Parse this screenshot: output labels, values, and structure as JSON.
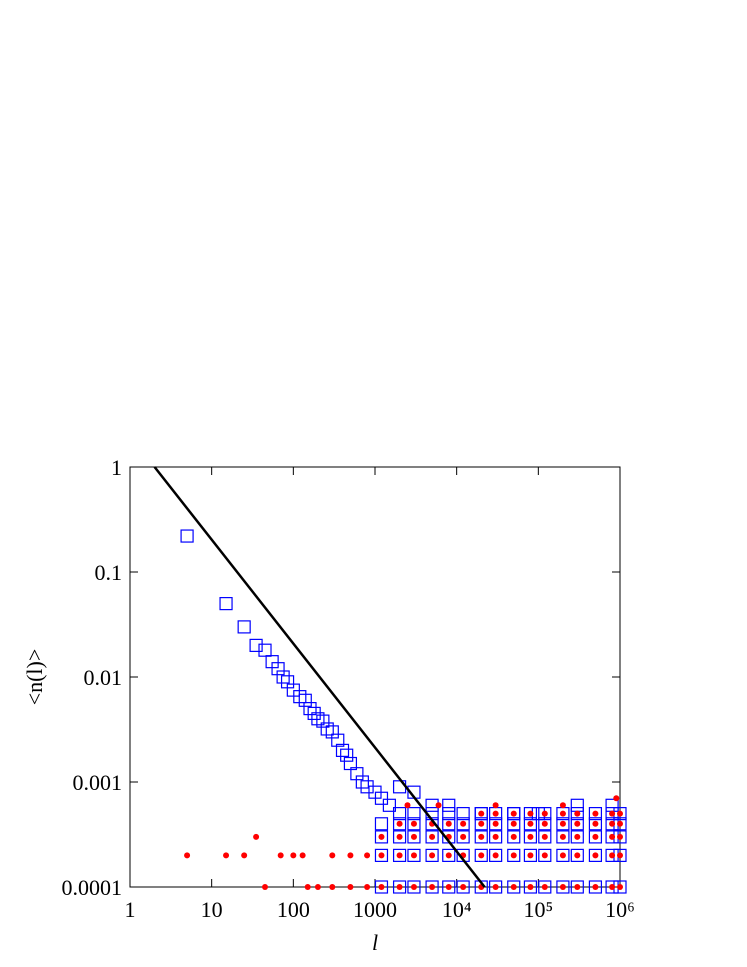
{
  "chart_data": {
    "type": "scatter",
    "xlabel": "l",
    "ylabel": "<n(l)>",
    "xscale": "log",
    "yscale": "log",
    "xlim": [
      1,
      1000000
    ],
    "ylim": [
      0.0001,
      1
    ],
    "xticks": [
      1,
      10,
      100,
      1000,
      {
        "value": 10000,
        "label": "10⁴"
      },
      {
        "value": 100000,
        "label": "10⁵"
      },
      {
        "value": 1000000,
        "label": "10⁶"
      }
    ],
    "yticks": [
      1,
      0.1,
      0.01,
      0.001,
      0.0001
    ],
    "series": [
      {
        "color": "#0000ff",
        "marker": "square",
        "x": [
          5,
          15,
          25,
          35,
          45,
          55,
          65,
          75,
          85,
          100,
          120,
          140,
          160,
          180,
          200,
          230,
          260,
          300,
          350,
          400,
          450,
          500,
          600,
          700,
          800,
          1000,
          1200,
          1500,
          2000,
          3000,
          5000,
          8000,
          20000,
          50000,
          100000,
          300000,
          800000
        ],
        "values": [
          0.22,
          0.05,
          0.03,
          0.02,
          0.018,
          0.014,
          0.012,
          0.01,
          0.009,
          0.0075,
          0.0065,
          0.006,
          0.005,
          0.0045,
          0.004,
          0.0038,
          0.0032,
          0.003,
          0.0025,
          0.002,
          0.0018,
          0.0015,
          0.0012,
          0.001,
          0.0009,
          0.0008,
          0.0007,
          0.0006,
          0.0009,
          0.0008,
          0.0006,
          0.0006,
          0.0005,
          0.0005,
          0.0005,
          0.0006,
          0.0006
        ]
      },
      {
        "color": "#0000ff",
        "marker": "square",
        "x": [
          1200,
          2000,
          3000,
          5000,
          8000,
          12000,
          20000,
          30000,
          50000,
          80000,
          120000,
          200000,
          300000,
          500000,
          800000,
          1000000
        ],
        "values": [
          0.0001,
          0.0001,
          0.0001,
          0.0001,
          0.0001,
          0.0001,
          0.0001,
          0.0001,
          0.0001,
          0.0001,
          0.0001,
          0.0001,
          0.0001,
          0.0001,
          0.0001,
          0.0001
        ]
      },
      {
        "color": "#0000ff",
        "marker": "square",
        "x": [
          1200,
          2000,
          3000,
          5000,
          8000,
          12000,
          20000,
          30000,
          50000,
          80000,
          120000,
          200000,
          300000,
          500000,
          800000,
          1000000
        ],
        "values": [
          0.0002,
          0.0002,
          0.0002,
          0.0002,
          0.0002,
          0.0002,
          0.0002,
          0.0002,
          0.0002,
          0.0002,
          0.0002,
          0.0002,
          0.0002,
          0.0002,
          0.0002,
          0.0002
        ]
      },
      {
        "color": "#0000ff",
        "marker": "square",
        "x": [
          1200,
          2000,
          3000,
          5000,
          8000,
          12000,
          20000,
          30000,
          50000,
          80000,
          120000,
          200000,
          300000,
          500000,
          800000,
          1000000
        ],
        "values": [
          0.0003,
          0.0003,
          0.0003,
          0.0003,
          0.0003,
          0.0003,
          0.0003,
          0.0003,
          0.0003,
          0.0003,
          0.0003,
          0.0003,
          0.0003,
          0.0003,
          0.0003,
          0.0003
        ]
      },
      {
        "color": "#0000ff",
        "marker": "square",
        "x": [
          1200,
          2000,
          3000,
          5000,
          8000,
          12000,
          20000,
          30000,
          50000,
          80000,
          120000,
          200000,
          300000,
          500000,
          800000,
          1000000
        ],
        "values": [
          0.0004,
          0.0004,
          0.0004,
          0.0004,
          0.0004,
          0.0004,
          0.0004,
          0.0004,
          0.0004,
          0.0004,
          0.0004,
          0.0004,
          0.0004,
          0.0004,
          0.0004,
          0.0004
        ]
      },
      {
        "color": "#0000ff",
        "marker": "square",
        "x": [
          2000,
          3000,
          5000,
          8000,
          12000,
          20000,
          30000,
          50000,
          80000,
          120000,
          200000,
          300000,
          500000,
          800000,
          1000000
        ],
        "values": [
          0.0005,
          0.0005,
          0.0005,
          0.0005,
          0.0005,
          0.0005,
          0.0005,
          0.0005,
          0.0005,
          0.0005,
          0.0005,
          0.0005,
          0.0005,
          0.0005,
          0.0005
        ]
      },
      {
        "color": "#ff0000",
        "marker": "dot",
        "x": [
          5,
          15,
          25,
          35,
          45,
          70,
          100,
          130,
          2500,
          6000,
          30000,
          200000,
          900000
        ],
        "values": [
          0.0002,
          0.0002,
          0.0002,
          0.0003,
          0.0001,
          0.0002,
          0.0002,
          0.0002,
          0.0006,
          0.0006,
          0.0006,
          0.0006,
          0.0007
        ]
      },
      {
        "color": "#ff0000",
        "marker": "dot",
        "x": [
          150,
          200,
          300,
          500,
          800,
          1200,
          2000,
          3000,
          5000,
          8000,
          12000,
          20000,
          30000,
          50000,
          80000,
          120000,
          200000,
          300000,
          500000,
          800000,
          1000000
        ],
        "values": [
          0.0001,
          0.0001,
          0.0001,
          0.0001,
          0.0001,
          0.0001,
          0.0001,
          0.0001,
          0.0001,
          0.0001,
          0.0001,
          0.0001,
          0.0001,
          0.0001,
          0.0001,
          0.0001,
          0.0001,
          0.0001,
          0.0001,
          0.0001,
          0.0001
        ]
      },
      {
        "color": "#ff0000",
        "marker": "dot",
        "x": [
          300,
          500,
          800,
          1200,
          2000,
          3000,
          5000,
          8000,
          12000,
          20000,
          30000,
          50000,
          80000,
          120000,
          200000,
          300000,
          500000,
          800000,
          1000000
        ],
        "values": [
          0.0002,
          0.0002,
          0.0002,
          0.0002,
          0.0002,
          0.0002,
          0.0002,
          0.0002,
          0.0002,
          0.0002,
          0.0002,
          0.0002,
          0.0002,
          0.0002,
          0.0002,
          0.0002,
          0.0002,
          0.0002,
          0.0002
        ]
      },
      {
        "color": "#ff0000",
        "marker": "dot",
        "x": [
          1200,
          2000,
          3000,
          5000,
          8000,
          12000,
          20000,
          30000,
          50000,
          80000,
          120000,
          200000,
          300000,
          500000,
          800000,
          1000000
        ],
        "values": [
          0.0003,
          0.0003,
          0.0003,
          0.0003,
          0.0003,
          0.0003,
          0.0003,
          0.0003,
          0.0003,
          0.0003,
          0.0003,
          0.0003,
          0.0003,
          0.0003,
          0.0003,
          0.0003
        ]
      },
      {
        "color": "#ff0000",
        "marker": "dot",
        "x": [
          2000,
          3000,
          5000,
          8000,
          12000,
          20000,
          30000,
          50000,
          80000,
          120000,
          200000,
          300000,
          500000,
          800000,
          1000000
        ],
        "values": [
          0.0004,
          0.0004,
          0.0004,
          0.0004,
          0.0004,
          0.0004,
          0.0004,
          0.0004,
          0.0004,
          0.0004,
          0.0004,
          0.0004,
          0.0004,
          0.0004,
          0.0004
        ]
      },
      {
        "color": "#ff0000",
        "marker": "dot",
        "x": [
          20000,
          30000,
          50000,
          80000,
          120000,
          200000,
          300000,
          500000,
          800000,
          1000000
        ],
        "values": [
          0.0005,
          0.0005,
          0.0005,
          0.0005,
          0.0005,
          0.0005,
          0.0005,
          0.0005,
          0.0005,
          0.0005
        ]
      },
      {
        "color": "#000000",
        "marker": "line",
        "x": [
          2,
          22000
        ],
        "values": [
          1,
          0.0001
        ]
      }
    ]
  }
}
